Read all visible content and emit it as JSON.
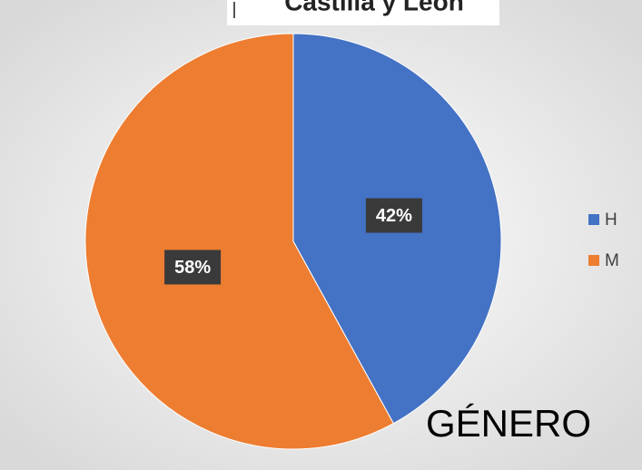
{
  "chart_data": {
    "type": "pie",
    "title": "Castilla y León",
    "categories": [
      "H",
      "M"
    ],
    "values": [
      42,
      58
    ],
    "value_labels": [
      "42%",
      "58%"
    ],
    "colors": [
      "#4472c4",
      "#ed7d31"
    ],
    "legend": "right",
    "annotation": "GÉNERO"
  }
}
